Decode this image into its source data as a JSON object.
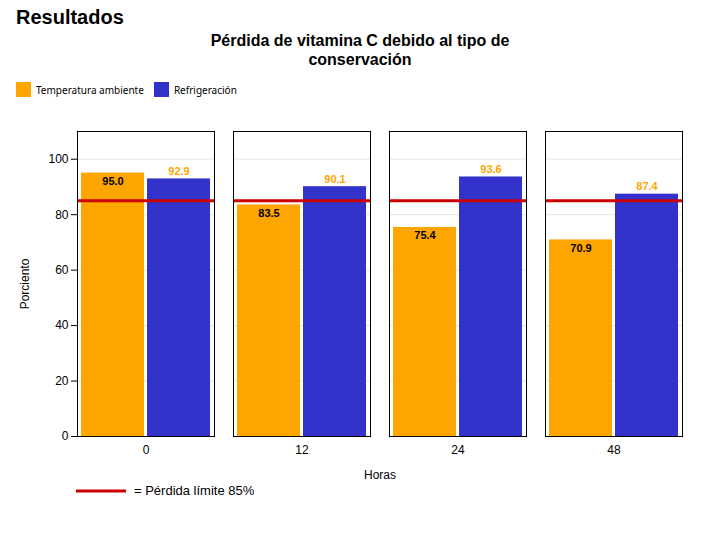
{
  "chart_data": {
    "type": "bar",
    "supertitle": "Resultados",
    "title": "Pérdida de vitamina C debido al tipo de\nconservación",
    "xlabel": "Horas",
    "ylabel": "Porciento",
    "categories": [
      0,
      12,
      24,
      48
    ],
    "series": [
      {
        "name": "Temperatura ambiente",
        "color": "#FFA500",
        "values": [
          95.0,
          83.5,
          75.4,
          70.9
        ],
        "value_labels": [
          "95.0",
          "83.5",
          "75.4",
          "70.9"
        ]
      },
      {
        "name": "Refrigeración",
        "color": "#3333CC",
        "values": [
          92.9,
          90.1,
          93.6,
          87.4
        ]
      }
    ],
    "hlines": [
      {
        "y": 85,
        "label": "= Pérdida límite 85%",
        "color": "#CC0000"
      }
    ],
    "ylim": [
      0,
      110
    ],
    "yticks": [
      0,
      20,
      40,
      60,
      80,
      100
    ],
    "grid": true,
    "legend": "top",
    "data_labels": true
  }
}
